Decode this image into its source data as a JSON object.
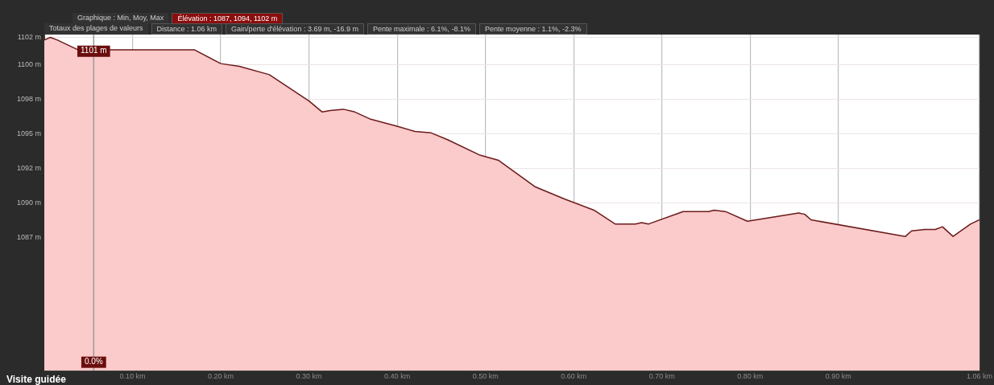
{
  "chart_data": {
    "type": "area",
    "annotations": [
      "Graphique : Min, Moy, Max",
      "Élévation : 1087, 1094, 1102 m",
      "Totaux des plages de valeurs",
      "Distance : 1.06 km",
      "Gain/perte d'élévation : 3.69 m, -16.9 m",
      "Pente maximale : 6.1%, -8.1%",
      "Pente moyenne : 1.1%, -2.3%",
      "Visite guidée",
      {
        "text": "1101 m",
        "x": 0.056,
        "y": 1101
      },
      {
        "text": "0.0%",
        "x": 0.056,
        "y": 1078.5
      }
    ],
    "x": [
      0,
      0.007,
      0.015,
      0.038,
      0.17,
      0.2,
      0.221,
      0.255,
      0.3,
      0.315,
      0.324,
      0.339,
      0.352,
      0.369,
      0.398,
      0.42,
      0.438,
      0.457,
      0.493,
      0.515,
      0.556,
      0.59,
      0.623,
      0.647,
      0.67,
      0.677,
      0.685,
      0.724,
      0.753,
      0.759,
      0.772,
      0.797,
      0.855,
      0.862,
      0.869,
      0.976,
      0.983,
      0.998,
      1.01,
      1.018,
      1.03,
      1.05,
      1.06
    ],
    "series": [
      {
        "color": "#6b1a1a",
        "values": [
          1101.8,
          1102,
          1101.8,
          1101.1,
          1101.1,
          1100.1,
          1099.9,
          1099.3,
          1097.4,
          1096.6,
          1096.7,
          1096.8,
          1096.6,
          1096.1,
          1095.6,
          1095.2,
          1095.1,
          1094.6,
          1093.5,
          1093.1,
          1091.2,
          1090.3,
          1089.5,
          1088.5,
          1088.5,
          1088.6,
          1088.5,
          1089.4,
          1089.4,
          1089.5,
          1089.4,
          1088.7,
          1089.3,
          1089.2,
          1088.8,
          1087.6,
          1088.0,
          1088.1,
          1088.1,
          1088.3,
          1087.6,
          1088.5,
          1088.8
        ]
      }
    ],
    "xlim": [
      0,
      1.06
    ],
    "ylim": [
      1077.9,
      1102.2
    ],
    "xticks": [
      {
        "value": 0.1,
        "label": "0.10 km"
      },
      {
        "value": 0.2,
        "label": "0.20 km"
      },
      {
        "value": 0.3,
        "label": "0.30 km"
      },
      {
        "value": 0.4,
        "label": "0.40 km"
      },
      {
        "value": 0.5,
        "label": "0.50 km"
      },
      {
        "value": 0.6,
        "label": "0.60 km"
      },
      {
        "value": 0.7,
        "label": "0.70 km"
      },
      {
        "value": 0.8,
        "label": "0.80 km"
      },
      {
        "value": 0.9,
        "label": "0.90 km"
      },
      {
        "value": 1.06,
        "label": "1.06 km"
      }
    ],
    "yticks": [
      {
        "value": 1087.5,
        "label": "1087 m"
      },
      {
        "value": 1090,
        "label": "1090 m"
      },
      {
        "value": 1092.5,
        "label": "1092 m"
      },
      {
        "value": 1095,
        "label": "1095 m"
      },
      {
        "value": 1097.5,
        "label": "1098 m"
      },
      {
        "value": 1100,
        "label": "1100 m"
      },
      {
        "value": 1102,
        "label": "1102 m"
      }
    ],
    "ref_lines": [
      {
        "axis": "x",
        "value": 0.056,
        "color": "#9a9a9a"
      }
    ],
    "grid": true,
    "legend": false,
    "marker": "none",
    "line_style": "solid"
  }
}
